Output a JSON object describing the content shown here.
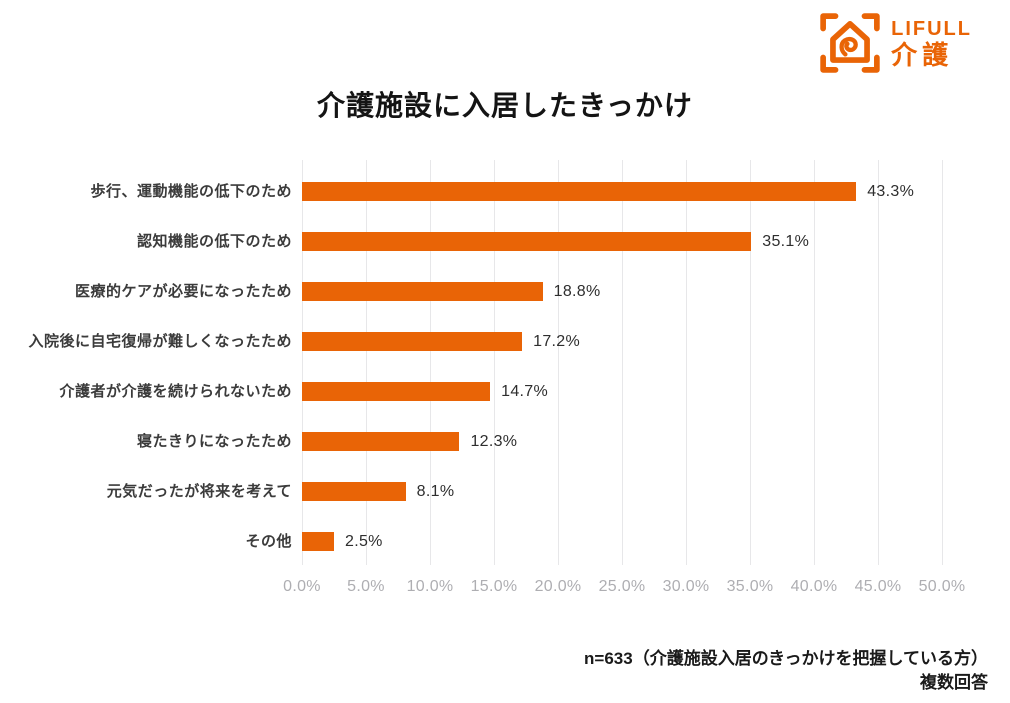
{
  "logo": {
    "brand": "LIFULL",
    "sub": "介護",
    "color": "#E96406"
  },
  "title": "介護施設に入居したきっかけ",
  "chart_data": {
    "type": "bar",
    "orientation": "horizontal",
    "title": "介護施設に入居したきっかけ",
    "categories": [
      "歩行、運動機能の低下のため",
      "認知機能の低下のため",
      "医療的ケアが必要になったため",
      "入院後に自宅復帰が難しくなったため",
      "介護者が介護を続けられないため",
      "寝たきりになったため",
      "元気だったが将来を考えて",
      "その他"
    ],
    "values": [
      43.3,
      35.1,
      18.8,
      17.2,
      14.7,
      12.3,
      8.1,
      2.5
    ],
    "value_labels": [
      "43.3%",
      "35.1%",
      "18.8%",
      "17.2%",
      "14.7%",
      "12.3%",
      "8.1%",
      "2.5%"
    ],
    "xlabel": "",
    "ylabel": "",
    "xlim": [
      0,
      50
    ],
    "x_tick_step": 5,
    "x_ticks": [
      "0.0%",
      "5.0%",
      "10.0%",
      "15.0%",
      "20.0%",
      "25.0%",
      "30.0%",
      "35.0%",
      "40.0%",
      "45.0%",
      "50.0%"
    ],
    "bar_color": "#E96406",
    "grid": true,
    "legend": false
  },
  "footer": {
    "line1": "n=633（介護施設入居のきっかけを把握している方）",
    "line2": "複数回答"
  }
}
